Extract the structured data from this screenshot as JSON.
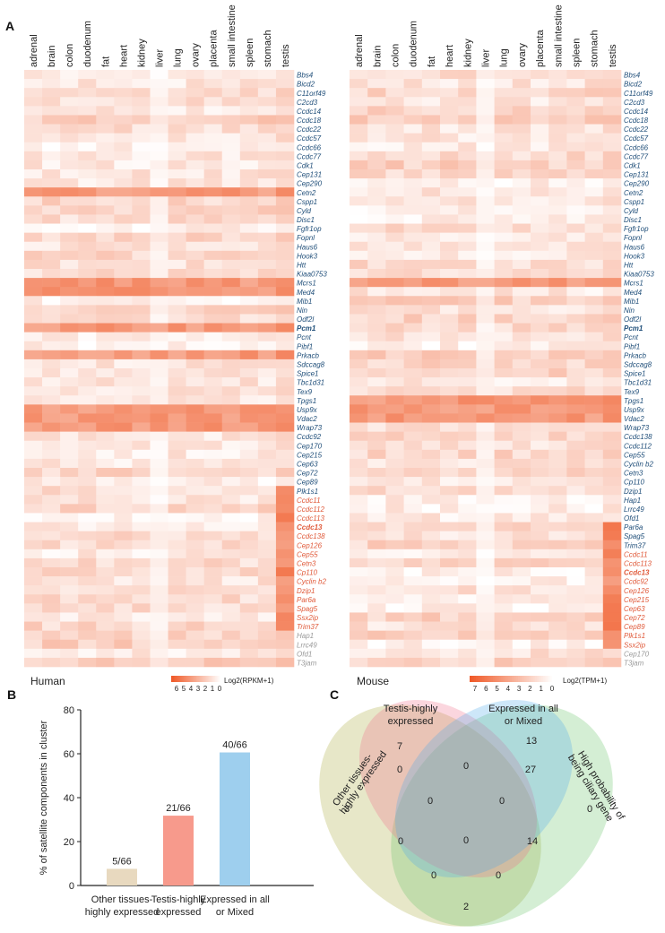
{
  "panel_labels": {
    "a": "A",
    "b": "B",
    "c": "C"
  },
  "tissues_human": [
    "adrenal",
    "brain",
    "colon",
    "duodenum",
    "fat",
    "heart",
    "kidney",
    "liver",
    "lung",
    "ovary",
    "placenta",
    "small intestine",
    "spleen",
    "stomach",
    "testis"
  ],
  "tissues_mouse": [
    "adrenal",
    "brain",
    "colon",
    "duodenum",
    "fat",
    "heart",
    "kidney",
    "liver",
    "lung",
    "ovary",
    "placenta",
    "small intestine",
    "spleen",
    "stomach",
    "testis"
  ],
  "colors": {
    "heat_max": "#f05a28",
    "blue_label": "#1f4e79",
    "red_label": "#e05a3a",
    "gray_label": "#9a9a9a",
    "bar_tan": "#e8d9bf",
    "bar_pink": "#f79a8c",
    "bar_blue": "#9ecfee"
  },
  "human_genes": {
    "blue": [
      "Bbs4",
      "Bicd2",
      "C11orf49",
      "C2cd3",
      "Ccdc14",
      "Ccdc18",
      "Ccdc22",
      "Ccdc57",
      "Ccdc66",
      "Ccdc77",
      "Cdk1",
      "Cep131",
      "Cep290",
      "Cetn2",
      "Cspp1",
      "Cyld",
      "Disc1",
      "Fgfr1op",
      "Fopnl",
      "Haus6",
      "Hook3",
      "Htt",
      "Kiaa0753",
      "Mcrs1",
      "Med4",
      "Mib1",
      "Nin",
      "Odf2l",
      "Pcm1",
      "Pcnt",
      "Pibf1",
      "Prkacb",
      "Sdccag8",
      "Spice1",
      "Tbc1d31",
      "Tex9",
      "Tpgs1",
      "Usp9x",
      "Vdac2",
      "Wrap73",
      "Ccdc92",
      "Cep170",
      "Cep215",
      "Cep63",
      "Cep72",
      "Cep89",
      "Plk1s1"
    ],
    "red": [
      "Ccdc11",
      "Ccdc112",
      "Ccdc113",
      "Ccdc13",
      "Ccdc138",
      "Cep126",
      "Cep55",
      "Cetn3",
      "Cp110",
      "Cyclin b2",
      "Dzip1",
      "Par6a",
      "Spag5",
      "Ssx2ip",
      "Trim37"
    ],
    "gray": [
      "Hap1",
      "Lrrc49",
      "Ofd1",
      "T3jam"
    ]
  },
  "mouse_genes": {
    "blue": [
      "Bbs4",
      "Bicd2",
      "C11orf49",
      "C2cd3",
      "Ccdc14",
      "Ccdc18",
      "Ccdc22",
      "Ccdc57",
      "Ccdc66",
      "Ccdc77",
      "Cdk1",
      "Cep131",
      "Cep290",
      "Cetn2",
      "Cspp1",
      "Cyld",
      "Disc1",
      "Fgfr1op",
      "Fopnl",
      "Haus6",
      "Hook3",
      "Htt",
      "Kiaa0753",
      "Mcrs1",
      "Med4",
      "Mib1",
      "Nin",
      "Odf2l",
      "Pcm1",
      "Pcnt",
      "Pibf1",
      "Prkacb",
      "Sdccag8",
      "Spice1",
      "Tbc1d31",
      "Tex9",
      "Tpgs1",
      "Usp9x",
      "Vdac2",
      "Wrap73",
      "Ccdc138",
      "Ccdc112",
      "Cep55",
      "Cyclin b2",
      "Cetn3",
      "Cp110",
      "Dzip1",
      "Hap1",
      "Lrrc49",
      "Ofd1",
      "Par6a",
      "Spag5",
      "Trim37"
    ],
    "red": [
      "Ccdc11",
      "Ccdc113",
      "Ccdc13",
      "Ccdc92",
      "Cep126",
      "Cep215",
      "Cep63",
      "Cep72",
      "Cep89",
      "Plk1s1",
      "Ssx2ip"
    ],
    "gray": [
      "Cep170",
      "T3jam"
    ]
  },
  "bold_genes": [
    "Pcm1",
    "Ccdc13"
  ],
  "heatmap_legend_human": {
    "species": "Human",
    "ticks": [
      "6",
      "5",
      "4",
      "3",
      "2",
      "1",
      "0"
    ],
    "label": "Log2(RPKM+1)"
  },
  "heatmap_legend_mouse": {
    "species": "Mouse",
    "ticks": [
      "7",
      "6",
      "5",
      "4",
      "3",
      "2",
      "1",
      "0"
    ],
    "label": "Log2(TPM+1)"
  },
  "heatmap_rows": {
    "human_strong": [
      "Cetn2",
      "Mcrs1",
      "Med4",
      "Pcm1",
      "Usp9x",
      "Vdac2",
      "Wrap73",
      "Prkacb"
    ],
    "mouse_strong": [
      "Tpgs1",
      "Vdac2",
      "Usp9x",
      "Mcrs1"
    ],
    "human_testis_rows": [
      "Plk1s1",
      "Ccdc11",
      "Ccdc112",
      "Ccdc113",
      "Ccdc13",
      "Ccdc138",
      "Cep126",
      "Cep55",
      "Cetn3",
      "Cp110",
      "Cyclin b2",
      "Dzip1",
      "Par6a",
      "Spag5",
      "Ssx2ip",
      "Trim37"
    ],
    "mouse_testis_rows": [
      "Ccdc11",
      "Ccdc113",
      "Ccdc13",
      "Ccdc92",
      "Cep126",
      "Cep215",
      "Cep63",
      "Cep72",
      "Cep89",
      "Plk1s1",
      "Ssx2ip",
      "Par6a",
      "Spag5",
      "Trim37"
    ]
  },
  "chart_data": {
    "type": "bar",
    "categories": [
      "Other tissues-\nhighly expressed",
      "Testis-highly\nexpressed",
      "Expressed in all\nor Mixed"
    ],
    "values": [
      7.6,
      31.8,
      60.6
    ],
    "bar_labels": [
      "5/66",
      "21/66",
      "40/66"
    ],
    "ylabel": "% of satellite components in cluster",
    "yticks": [
      "0",
      "20",
      "40",
      "60",
      "80"
    ],
    "ylim": [
      0,
      80
    ]
  },
  "venn": {
    "sets": [
      "Other tissues-\nhighly expressed",
      "Testis-highly\nexpressed",
      "Expressed in all\nor Mixed",
      "High probability of\nbeing ciliary gene"
    ],
    "counts": {
      "other_only": "3",
      "testis_only": "7",
      "expr_only": "13",
      "cilia_only": "0",
      "other_testis": "0",
      "testis_expr": "0",
      "expr_cilia": "27",
      "other_expr": "0",
      "testis_cilia": "14",
      "other_cilia": "0",
      "other_testis_expr": "0",
      "testis_expr_cilia": "0",
      "other_testis_cilia": "0",
      "other_expr_cilia": "0",
      "all_four": "0",
      "bottom_only": "2"
    }
  }
}
